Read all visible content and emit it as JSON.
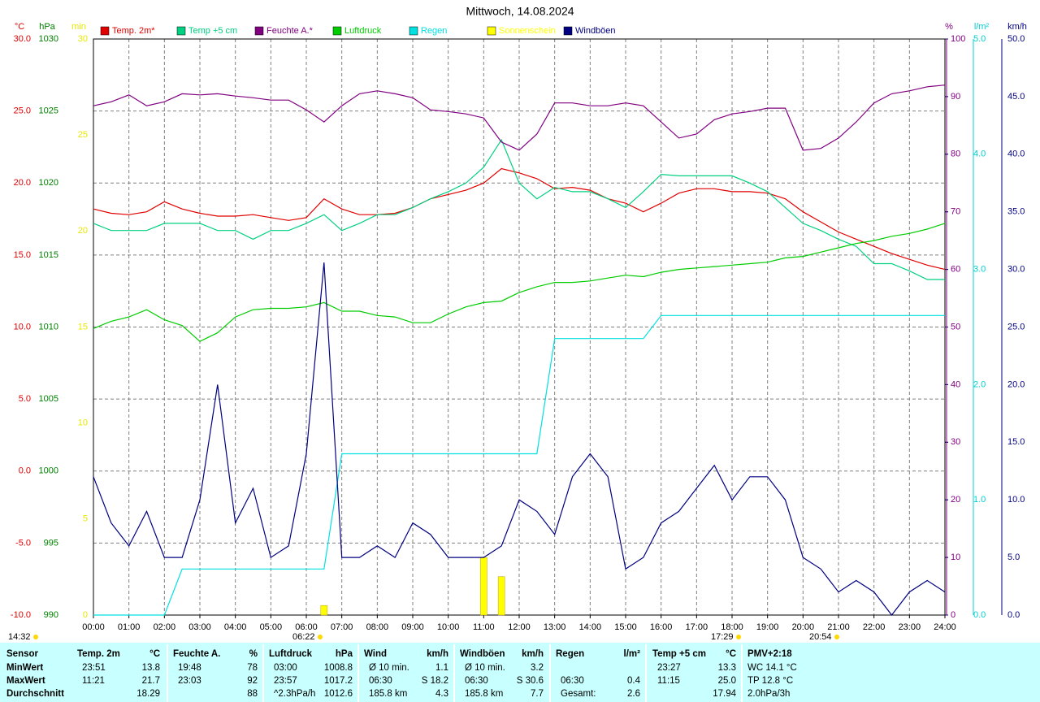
{
  "chart_data": {
    "type": "line",
    "title": "Mittwoch, 14.08.2024",
    "xlim": [
      0,
      24
    ],
    "xticks": [
      {
        "value": 0,
        "label": "00:00"
      },
      {
        "value": 1,
        "label": "01:00"
      },
      {
        "value": 2,
        "label": "02:00"
      },
      {
        "value": 3,
        "label": "03:00"
      },
      {
        "value": 4,
        "label": "04:00"
      },
      {
        "value": 5,
        "label": "05:00"
      },
      {
        "value": 6,
        "label": "06:00"
      },
      {
        "value": 7,
        "label": "07:00"
      },
      {
        "value": 8,
        "label": "08:00"
      },
      {
        "value": 9,
        "label": "09:00"
      },
      {
        "value": 10,
        "label": "10:00"
      },
      {
        "value": 11,
        "label": "11:00"
      },
      {
        "value": 12,
        "label": "12:00"
      },
      {
        "value": 13,
        "label": "13:00"
      },
      {
        "value": 14,
        "label": "14:00"
      },
      {
        "value": 15,
        "label": "15:00"
      },
      {
        "value": 16,
        "label": "16:00"
      },
      {
        "value": 17,
        "label": "17:00"
      },
      {
        "value": 18,
        "label": "18:00"
      },
      {
        "value": 19,
        "label": "19:00"
      },
      {
        "value": 20,
        "label": "20:00"
      },
      {
        "value": 21,
        "label": "21:00"
      },
      {
        "value": 22,
        "label": "22:00"
      },
      {
        "value": 23,
        "label": "23:00"
      },
      {
        "value": 24,
        "label": "24:00"
      }
    ],
    "grid": true,
    "axes": [
      {
        "label": "°C",
        "side": "left",
        "color": "#e00000",
        "lim": [
          -10,
          30
        ],
        "ticks": [
          {
            "value": -10,
            "label": "-10.0"
          },
          {
            "value": -5,
            "label": "-5.0"
          },
          {
            "value": 0,
            "label": "0.0"
          },
          {
            "value": 5,
            "label": "5.0"
          },
          {
            "value": 10,
            "label": "10.0"
          },
          {
            "value": 15,
            "label": "15.0"
          },
          {
            "value": 20,
            "label": "20.0"
          },
          {
            "value": 25,
            "label": "25.0"
          },
          {
            "value": 30,
            "label": "30.0"
          }
        ]
      },
      {
        "label": "hPa",
        "side": "left",
        "color": "#008000",
        "lim": [
          990,
          1030
        ],
        "ticks": [
          990,
          995,
          1000,
          1005,
          1010,
          1015,
          1020,
          1025,
          1030
        ]
      },
      {
        "label": "min",
        "side": "left",
        "color": "#e8e800",
        "lim": [
          0,
          30
        ],
        "ticks": [
          0,
          5,
          10,
          15,
          20,
          25,
          30
        ]
      },
      {
        "label": "%",
        "side": "right",
        "color": "#800080",
        "lim": [
          0,
          100
        ],
        "ticks": [
          0,
          10,
          20,
          30,
          40,
          50,
          60,
          70,
          80,
          90,
          100
        ]
      },
      {
        "label": "l/m²",
        "side": "right",
        "color": "#00d0d0",
        "lim": [
          0,
          5
        ],
        "ticks": [
          {
            "value": 0,
            "label": "0.0"
          },
          {
            "value": 1,
            "label": "1.0"
          },
          {
            "value": 2,
            "label": "2.0"
          },
          {
            "value": 3,
            "label": "3.0"
          },
          {
            "value": 4,
            "label": "4.0"
          },
          {
            "value": 5,
            "label": "5.0"
          }
        ]
      },
      {
        "label": "km/h",
        "side": "right",
        "color": "#000080",
        "lim": [
          0,
          50
        ],
        "ticks": [
          {
            "value": 0,
            "label": "0.0"
          },
          {
            "value": 5,
            "label": "5.0"
          },
          {
            "value": 10,
            "label": "10.0"
          },
          {
            "value": 15,
            "label": "15.0"
          },
          {
            "value": 20,
            "label": "20.0"
          },
          {
            "value": 25,
            "label": "25.0"
          },
          {
            "value": 30,
            "label": "30.0"
          },
          {
            "value": 35,
            "label": "35.0"
          },
          {
            "value": 40,
            "label": "40.0"
          },
          {
            "value": 45,
            "label": "45.0"
          },
          {
            "value": 50,
            "label": "50.0"
          }
        ]
      }
    ],
    "x": [
      0,
      0.5,
      1,
      1.5,
      2,
      2.5,
      3,
      3.5,
      4,
      4.5,
      5,
      5.5,
      6,
      6.5,
      7,
      7.5,
      8,
      8.5,
      9,
      9.5,
      10,
      10.5,
      11,
      11.5,
      12,
      12.5,
      13,
      13.5,
      14,
      14.5,
      15,
      15.5,
      16,
      16.5,
      17,
      17.5,
      18,
      18.5,
      19,
      19.5,
      20,
      20.5,
      21,
      21.5,
      22,
      22.5,
      23,
      23.5,
      24
    ],
    "series": [
      {
        "name": "Temp. 2m*",
        "color": "#e00000",
        "axis": 0,
        "type": "line",
        "values": [
          18.2,
          17.9,
          17.8,
          18.0,
          18.7,
          18.2,
          17.9,
          17.7,
          17.7,
          17.8,
          17.6,
          17.4,
          17.6,
          18.9,
          18.2,
          17.8,
          17.8,
          17.9,
          18.3,
          18.9,
          19.2,
          19.5,
          20.0,
          21.0,
          20.7,
          20.3,
          19.6,
          19.7,
          19.5,
          18.9,
          18.6,
          18.0,
          18.6,
          19.3,
          19.6,
          19.6,
          19.4,
          19.4,
          19.3,
          18.9,
          18.0,
          17.3,
          16.6,
          16.1,
          15.6,
          15.1,
          14.7,
          14.3,
          14.0
        ]
      },
      {
        "name": "Temp +5 cm",
        "color": "#00d080",
        "axis": 0,
        "type": "line",
        "values": [
          17.2,
          16.7,
          16.7,
          16.7,
          17.2,
          17.2,
          17.2,
          16.7,
          16.7,
          16.1,
          16.7,
          16.7,
          17.2,
          17.8,
          16.7,
          17.2,
          17.8,
          17.8,
          18.3,
          18.9,
          19.4,
          20.0,
          21.1,
          23.0,
          20.0,
          18.9,
          19.7,
          19.4,
          19.4,
          18.9,
          18.3,
          19.4,
          20.6,
          20.5,
          20.5,
          20.5,
          20.5,
          20.0,
          19.4,
          18.3,
          17.2,
          16.7,
          16.1,
          15.6,
          14.4,
          14.4,
          13.9,
          13.3,
          13.3
        ]
      },
      {
        "name": "Feuchte A.*",
        "color": "#800080",
        "axis": 3,
        "type": "line",
        "values": [
          88.4,
          89.1,
          90.3,
          88.4,
          89.1,
          90.5,
          90.3,
          90.5,
          90.1,
          89.8,
          89.4,
          89.4,
          87.7,
          85.6,
          88.4,
          90.5,
          91.0,
          90.5,
          89.8,
          87.7,
          87.4,
          87.0,
          86.3,
          82.1,
          80.7,
          83.5,
          88.9,
          88.9,
          88.4,
          88.4,
          88.9,
          88.4,
          85.6,
          82.8,
          83.5,
          86.0,
          87.0,
          87.4,
          88.0,
          88.0,
          80.7,
          81.0,
          82.8,
          85.6,
          88.9,
          90.5,
          91.0,
          91.7,
          92.0
        ]
      },
      {
        "name": "Luftdruck",
        "color": "#00cc00",
        "axis": 1,
        "type": "line",
        "values": [
          1009.9,
          1010.4,
          1010.7,
          1011.2,
          1010.5,
          1010.1,
          1009.0,
          1009.6,
          1010.7,
          1011.2,
          1011.3,
          1011.3,
          1011.4,
          1011.7,
          1011.1,
          1011.1,
          1010.8,
          1010.7,
          1010.3,
          1010.3,
          1010.9,
          1011.4,
          1011.7,
          1011.8,
          1012.4,
          1012.8,
          1013.1,
          1013.1,
          1013.2,
          1013.4,
          1013.6,
          1013.5,
          1013.8,
          1014.0,
          1014.1,
          1014.2,
          1014.3,
          1014.4,
          1014.5,
          1014.8,
          1014.9,
          1015.2,
          1015.5,
          1015.8,
          1016.0,
          1016.3,
          1016.5,
          1016.8,
          1017.2
        ]
      },
      {
        "name": "Regen",
        "color": "#00e0e0",
        "axis": 4,
        "type": "line",
        "values": [
          0,
          0,
          0,
          0,
          0,
          0.4,
          0.4,
          0.4,
          0.4,
          0.4,
          0.4,
          0.4,
          0.4,
          0.4,
          1.4,
          1.4,
          1.4,
          1.4,
          1.4,
          1.4,
          1.4,
          1.4,
          1.4,
          1.4,
          1.4,
          1.4,
          2.4,
          2.4,
          2.4,
          2.4,
          2.4,
          2.4,
          2.6,
          2.6,
          2.6,
          2.6,
          2.6,
          2.6,
          2.6,
          2.6,
          2.6,
          2.6,
          2.6,
          2.6,
          2.6,
          2.6,
          2.6,
          2.6,
          2.6
        ]
      },
      {
        "name": "Sonnenschein",
        "color": "#ffff00",
        "axis": 2,
        "type": "bar",
        "values": [
          0,
          0,
          0,
          0,
          0,
          0,
          0,
          0,
          0,
          0,
          0,
          0,
          0,
          0.5,
          0,
          0,
          0,
          0,
          0,
          0,
          0,
          0,
          3,
          2,
          0,
          0,
          0,
          0,
          0,
          0,
          0,
          0,
          0,
          0,
          0,
          0,
          0,
          0,
          0,
          0,
          0,
          0,
          0,
          0,
          0,
          0,
          0,
          0,
          0
        ]
      },
      {
        "name": "Windböen",
        "color": "#000080",
        "axis": 5,
        "type": "line",
        "values": [
          12,
          8,
          6,
          9,
          5,
          5,
          10,
          20,
          8,
          11,
          5,
          6,
          14,
          30.6,
          5,
          5,
          6,
          5,
          8,
          7,
          5,
          5,
          5,
          6,
          10,
          9,
          7,
          12,
          14,
          12,
          4,
          5,
          8,
          9,
          11,
          13,
          10,
          12,
          12,
          10,
          5,
          4,
          2,
          3,
          2,
          0,
          2,
          3,
          2
        ]
      }
    ],
    "annotations": [
      "14:32",
      "06:22",
      "17:29",
      "20:54"
    ]
  },
  "table": {
    "columns": [
      {
        "name": "Sensor"
      },
      {
        "name": "Temp. 2m",
        "unit": "°C"
      },
      {
        "name": "Feuchte A.",
        "unit": "%"
      },
      {
        "name": "Luftdruck",
        "unit": "hPa"
      },
      {
        "name": "Wind",
        "unit": "km/h"
      },
      {
        "name": "Windböen",
        "unit": "km/h"
      },
      {
        "name": "Regen",
        "unit": "l/m²"
      },
      {
        "name": "Temp +5 cm",
        "unit": "°C"
      },
      {
        "name": "PMV+2:18"
      }
    ],
    "rows": [
      {
        "label": "MinWert",
        "cells": [
          [
            "23:51",
            "13.8"
          ],
          [
            "19:48",
            "78"
          ],
          [
            "03:00",
            "1008.8"
          ],
          [
            "Ø 10 min.",
            "1.1"
          ],
          [
            "Ø 10 min.",
            "3.2"
          ],
          [
            null,
            null
          ],
          [
            "23:27",
            "13.3"
          ],
          [
            "WC 14.1 °C",
            null
          ]
        ]
      },
      {
        "label": "MaxWert",
        "cells": [
          [
            "11:21",
            "21.7"
          ],
          [
            "23:03",
            "92"
          ],
          [
            "23:57",
            "1017.2"
          ],
          [
            "06:30",
            "S 18.2"
          ],
          [
            "06:30",
            "S 30.6"
          ],
          [
            "06:30",
            "0.4"
          ],
          [
            "11:15",
            "25.0"
          ],
          [
            "TP 12.8 °C",
            null
          ]
        ]
      },
      {
        "label": "Durchschnitt",
        "cells": [
          [
            null,
            "18.29"
          ],
          [
            null,
            "88"
          ],
          [
            "^2.3hPa/h",
            "1012.6"
          ],
          [
            "185.8 km",
            "4.3"
          ],
          [
            "185.8 km",
            "7.7"
          ],
          [
            "Gesamt:",
            "2.6"
          ],
          [
            null,
            "17.94"
          ],
          [
            "2.0hPa/3h",
            null
          ]
        ]
      }
    ]
  }
}
